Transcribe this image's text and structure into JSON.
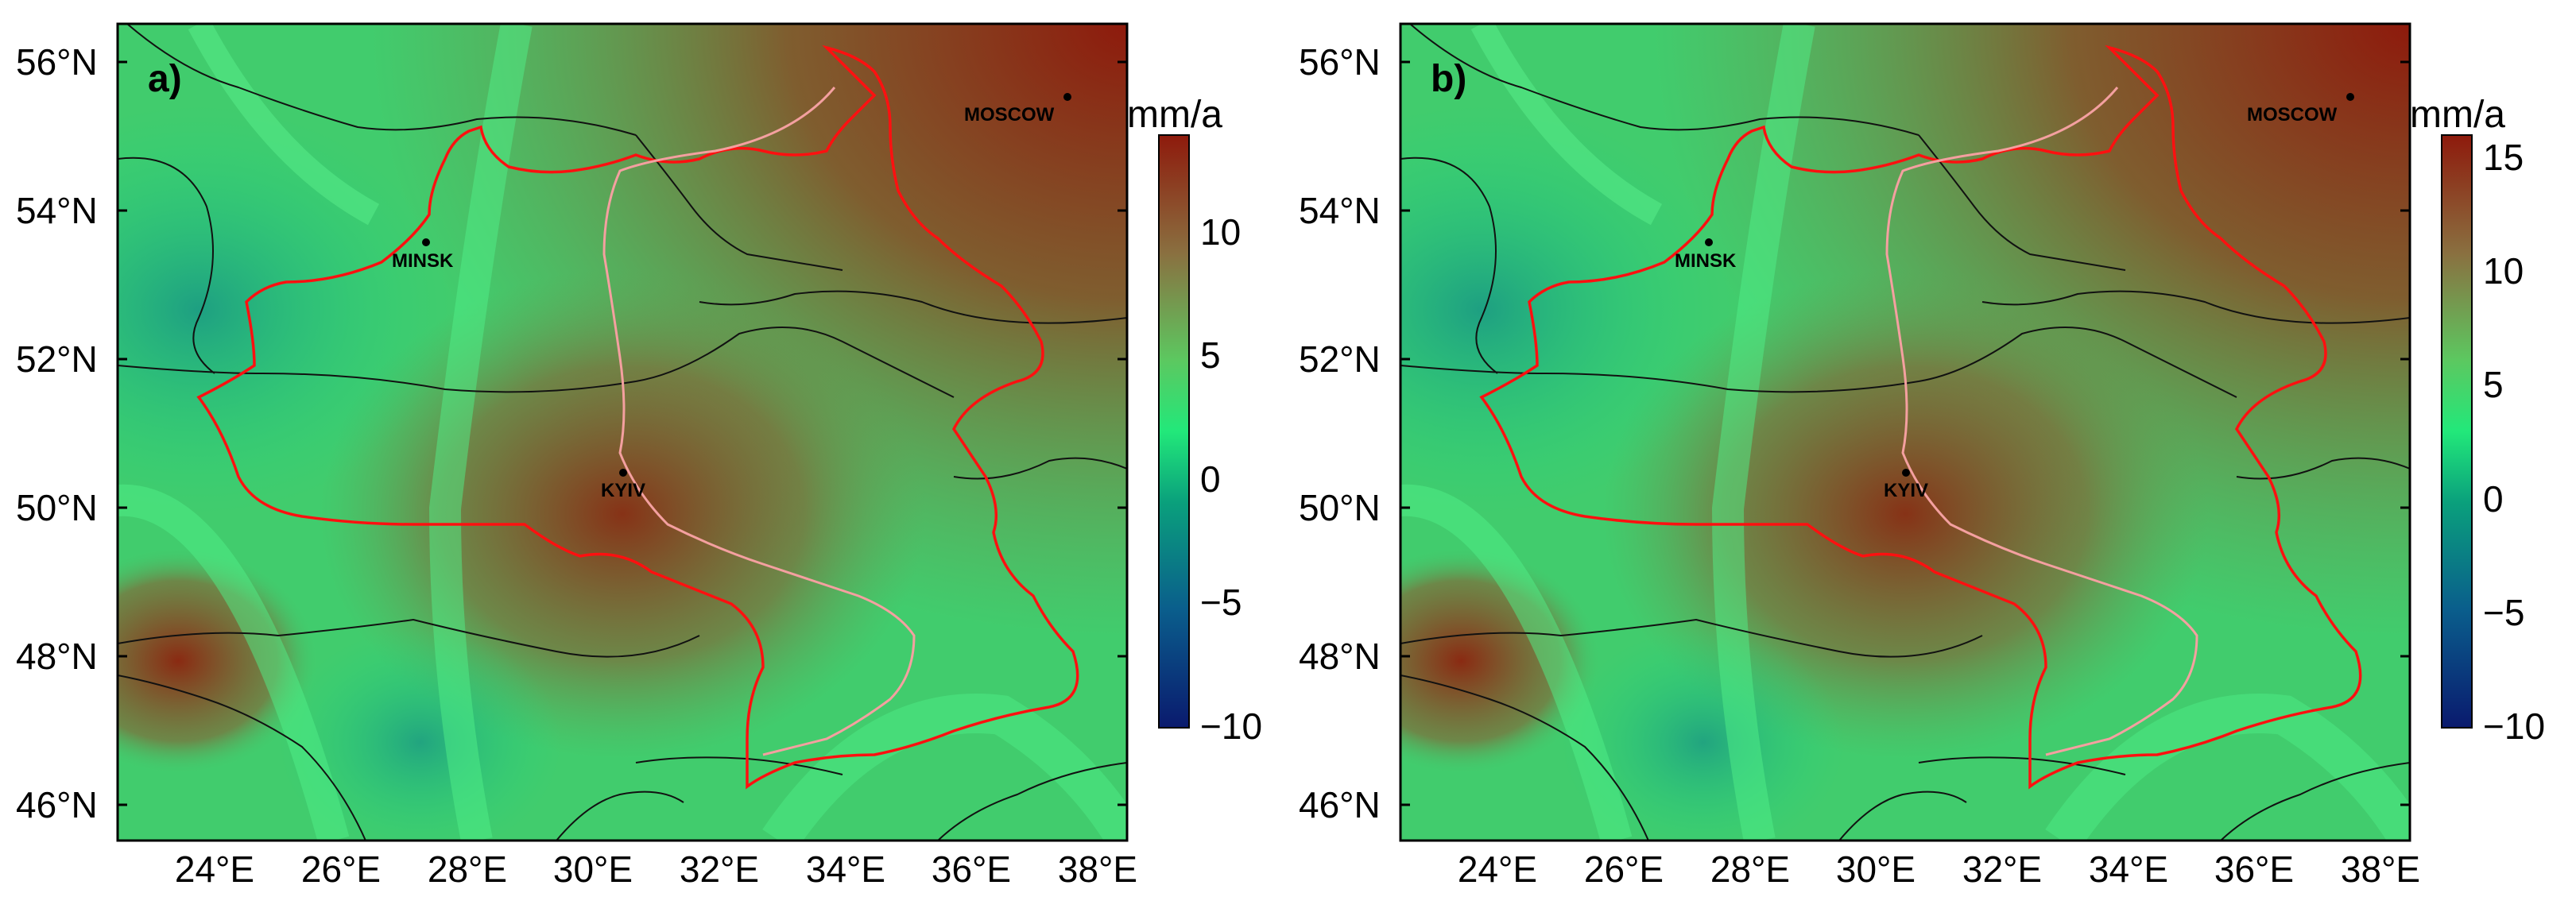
{
  "panels": [
    {
      "letter": "a)",
      "lat_labels": [
        "56°N",
        "54°N",
        "52°N",
        "50°N",
        "48°N",
        "46°N"
      ],
      "lon_labels": [
        "24°E",
        "26°E",
        "28°E",
        "30°E",
        "32°E",
        "34°E",
        "36°E",
        "38°E"
      ],
      "colorbar": {
        "unit": "mm/a",
        "ticks": [
          "10",
          "5",
          "0",
          "−5",
          "−10"
        ],
        "tick_values": [
          10,
          5,
          0,
          -5,
          -10
        ],
        "range": [
          -10,
          14
        ]
      },
      "cities": [
        {
          "name": "MINSK",
          "lon": 27.56,
          "lat": 53.9
        },
        {
          "name": "KYIV",
          "lon": 30.52,
          "lat": 50.45
        },
        {
          "name": "MOSCOW",
          "lon": 37.62,
          "lat": 55.75
        }
      ]
    },
    {
      "letter": "b)",
      "lat_labels": [
        "56°N",
        "54°N",
        "52°N",
        "50°N",
        "48°N",
        "46°N"
      ],
      "lon_labels": [
        "24°E",
        "26°E",
        "28°E",
        "30°E",
        "32°E",
        "34°E",
        "36°E",
        "38°E"
      ],
      "colorbar": {
        "unit": "mm/a",
        "ticks": [
          "15",
          "10",
          "5",
          "0",
          "−5",
          "−10"
        ],
        "tick_values": [
          15,
          10,
          5,
          0,
          -5,
          -10
        ],
        "range": [
          -10,
          16
        ]
      },
      "cities": [
        {
          "name": "MINSK",
          "lon": 27.56,
          "lat": 53.9
        },
        {
          "name": "KYIV",
          "lon": 30.52,
          "lat": 50.45
        },
        {
          "name": "MOSCOW",
          "lon": 37.62,
          "lat": 55.75
        }
      ]
    }
  ],
  "map_extent": {
    "lon": [
      22.5,
      38.5
    ],
    "lat": [
      45.5,
      56.5
    ]
  },
  "colormap": [
    "#0a1a6e",
    "#0a6f8e",
    "#15d07c",
    "#34ef7a",
    "#6fbf5a",
    "#8a6a36",
    "#8a2a12"
  ]
}
